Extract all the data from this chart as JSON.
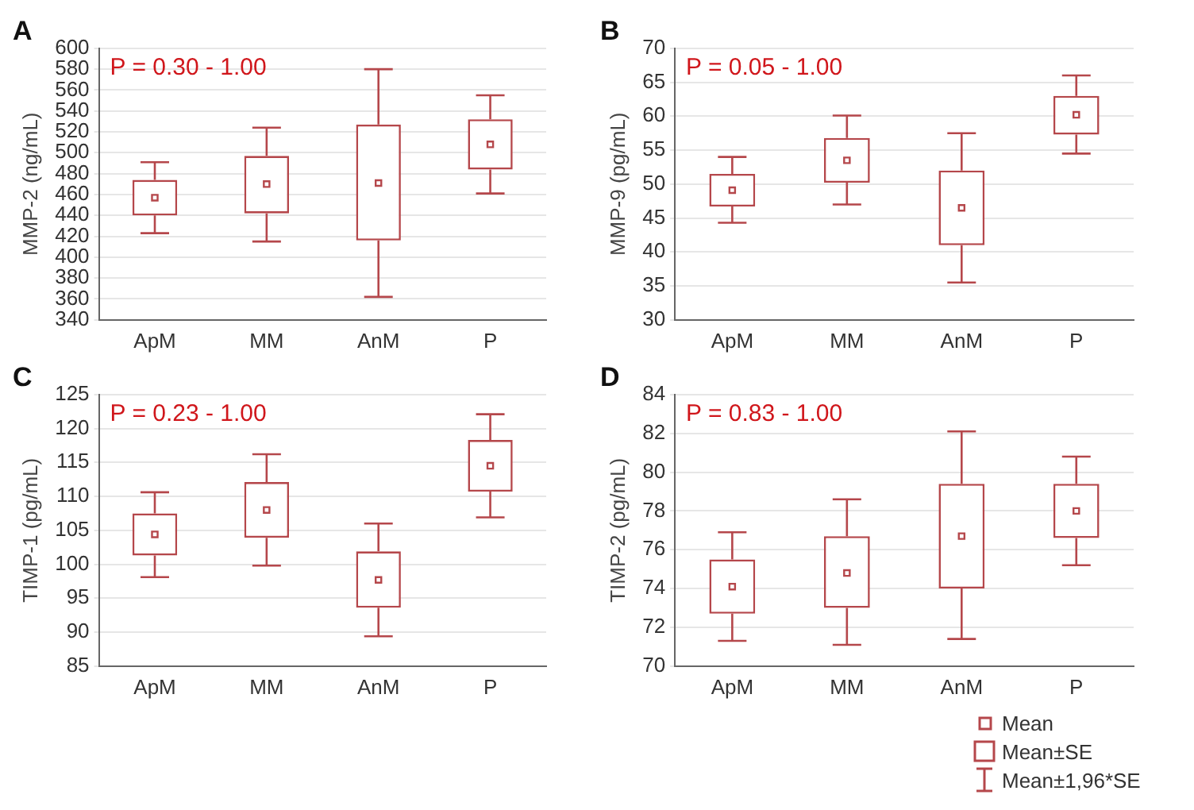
{
  "chart_data": [
    {
      "type": "box",
      "title": "A",
      "ylabel": "MMP-2 (ng/mL)",
      "categories": [
        "ApM",
        "MM",
        "AnM",
        "P"
      ],
      "ylim": [
        340,
        600
      ],
      "yticks": [
        340,
        360,
        380,
        400,
        420,
        440,
        460,
        480,
        500,
        520,
        540,
        560,
        580,
        600
      ],
      "grid": "y",
      "legend": false,
      "color": "#b5474b",
      "annotations": [
        "P = 0.30 - 1.00"
      ],
      "boxes": [
        {
          "low": 423,
          "q1": 440,
          "mean": 457,
          "q3": 474,
          "high": 491
        },
        {
          "low": 415,
          "q1": 442,
          "mean": 470,
          "q3": 497,
          "high": 524
        },
        {
          "low": 362,
          "q1": 416,
          "mean": 471,
          "q3": 527,
          "high": 580
        },
        {
          "low": 461,
          "q1": 484,
          "mean": 508,
          "q3": 532,
          "high": 555
        }
      ]
    },
    {
      "type": "box",
      "title": "B",
      "ylabel": "MMP-9 (pg/mL)",
      "categories": [
        "ApM",
        "MM",
        "AnM",
        "P"
      ],
      "ylim": [
        30,
        70
      ],
      "yticks": [
        30,
        35,
        40,
        45,
        50,
        55,
        60,
        65,
        70
      ],
      "grid": "y",
      "legend": false,
      "color": "#b5474b",
      "annotations": [
        "P = 0.05 - 1.00"
      ],
      "boxes": [
        {
          "low": 44.3,
          "q1": 46.7,
          "mean": 49.1,
          "q3": 51.5,
          "high": 54.0
        },
        {
          "low": 47.0,
          "q1": 50.2,
          "mean": 53.5,
          "q3": 56.8,
          "high": 60.1
        },
        {
          "low": 35.5,
          "q1": 41.0,
          "mean": 46.5,
          "q3": 52.0,
          "high": 57.5
        },
        {
          "low": 54.5,
          "q1": 57.3,
          "mean": 60.2,
          "q3": 63.0,
          "high": 66.0
        }
      ]
    },
    {
      "type": "box",
      "title": "C",
      "ylabel": "TIMP-1 (pg/mL)",
      "categories": [
        "ApM",
        "MM",
        "AnM",
        "P"
      ],
      "ylim": [
        85,
        125
      ],
      "yticks": [
        85,
        90,
        95,
        100,
        105,
        110,
        115,
        120,
        125
      ],
      "grid": "y",
      "legend": false,
      "color": "#b5474b",
      "annotations": [
        "P = 0.23 - 1.00"
      ],
      "boxes": [
        {
          "low": 98.1,
          "q1": 101.3,
          "mean": 104.4,
          "q3": 107.5,
          "high": 110.6
        },
        {
          "low": 99.8,
          "q1": 103.9,
          "mean": 108.0,
          "q3": 112.1,
          "high": 116.2
        },
        {
          "low": 89.4,
          "q1": 93.6,
          "mean": 97.7,
          "q3": 101.9,
          "high": 106.0
        },
        {
          "low": 106.9,
          "q1": 110.7,
          "mean": 114.5,
          "q3": 118.3,
          "high": 122.1
        }
      ]
    },
    {
      "type": "box",
      "title": "D",
      "ylabel": "TIMP-2 (pg/mL)",
      "categories": [
        "ApM",
        "MM",
        "AnM",
        "P"
      ],
      "ylim": [
        70,
        84
      ],
      "yticks": [
        70,
        72,
        74,
        76,
        78,
        80,
        82,
        84
      ],
      "grid": "y",
      "legend": false,
      "color": "#b5474b",
      "annotations": [
        "P = 0.83 - 1.00",
        "Mean",
        "Mean±SE",
        "Mean±1,96*SE"
      ],
      "boxes": [
        {
          "low": 71.3,
          "q1": 72.7,
          "mean": 74.1,
          "q3": 75.5,
          "high": 76.9
        },
        {
          "low": 71.1,
          "q1": 73.0,
          "mean": 74.8,
          "q3": 76.7,
          "high": 78.6
        },
        {
          "low": 71.4,
          "q1": 74.0,
          "mean": 76.7,
          "q3": 79.4,
          "high": 82.1
        },
        {
          "low": 75.2,
          "q1": 76.6,
          "mean": 78.0,
          "q3": 79.4,
          "high": 80.8
        }
      ]
    }
  ]
}
